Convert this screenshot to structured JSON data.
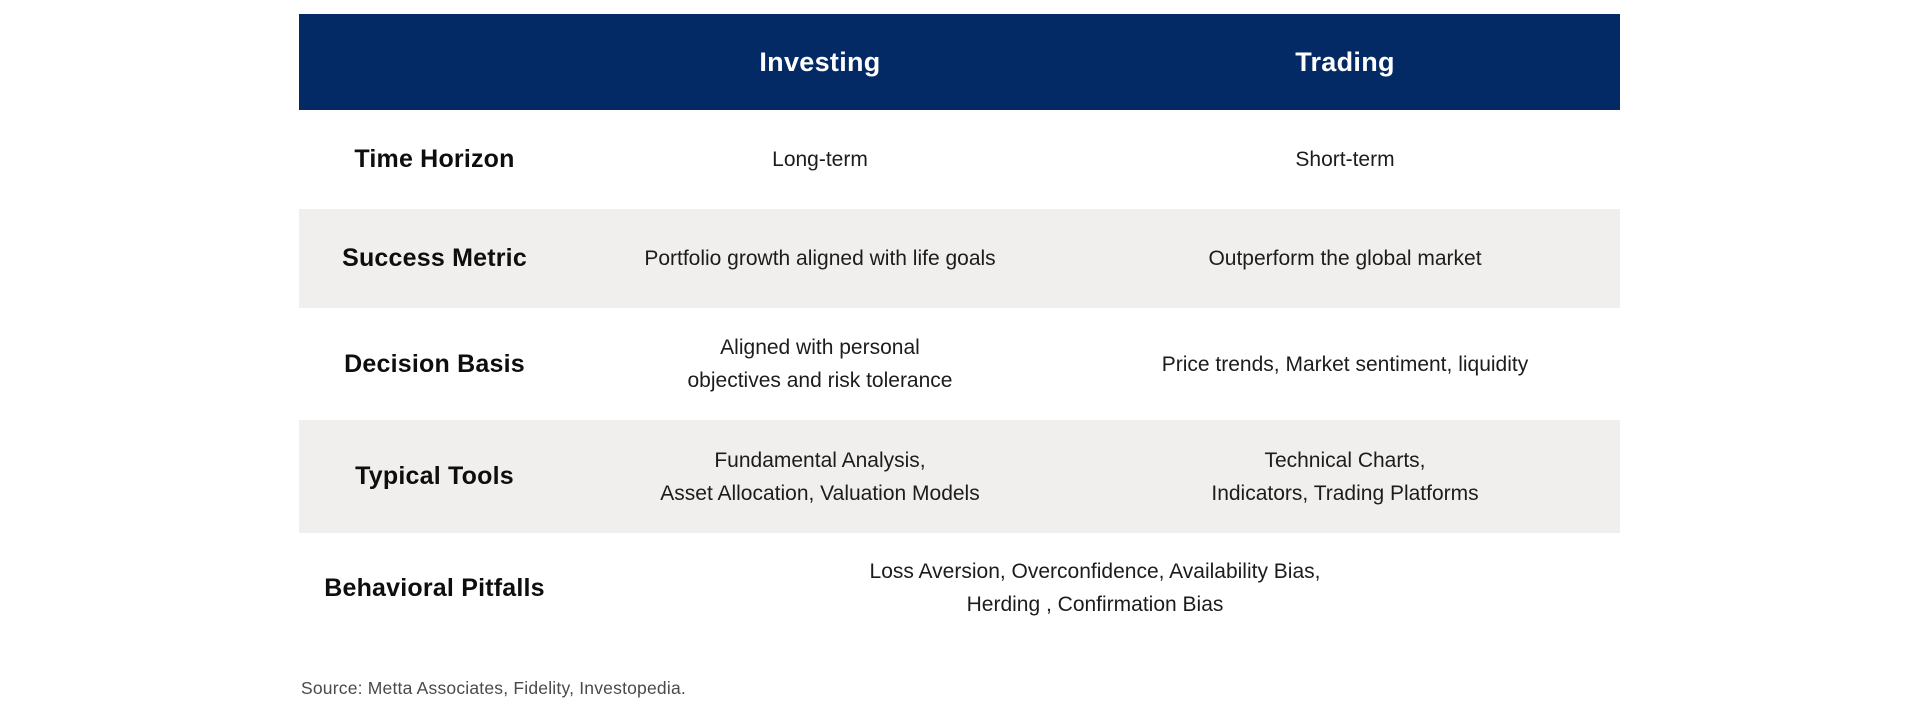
{
  "table": {
    "header": {
      "investing": "Investing",
      "trading": "Trading"
    },
    "rows": [
      {
        "label": "Time Horizon",
        "investing": "Long-term",
        "trading": "Short-term"
      },
      {
        "label": "Success Metric",
        "investing": "Portfolio growth aligned with life goals",
        "trading": "Outperform the global market"
      },
      {
        "label": "Decision Basis",
        "investing": "Aligned with personal\nobjectives and risk tolerance",
        "trading": "Price trends, Market sentiment, liquidity"
      },
      {
        "label": "Typical Tools",
        "investing": "Fundamental Analysis,\nAsset Allocation, Valuation Models",
        "trading": "Technical Charts,\nIndicators, Trading Platforms"
      },
      {
        "label": "Behavioral Pitfalls",
        "merged": "Loss Aversion, Overconfidence, Availability Bias,\nHerding , Confirmation Bias"
      }
    ]
  },
  "source": {
    "text": "Source: Metta Associates, Fidelity, Investopedia."
  },
  "colors": {
    "header_bg": "#032A64",
    "header_text": "#FFFFFF",
    "row_alt_bg": "#F0EFED",
    "body_text": "#1C1C1C",
    "source_text": "#4A4A4A"
  }
}
